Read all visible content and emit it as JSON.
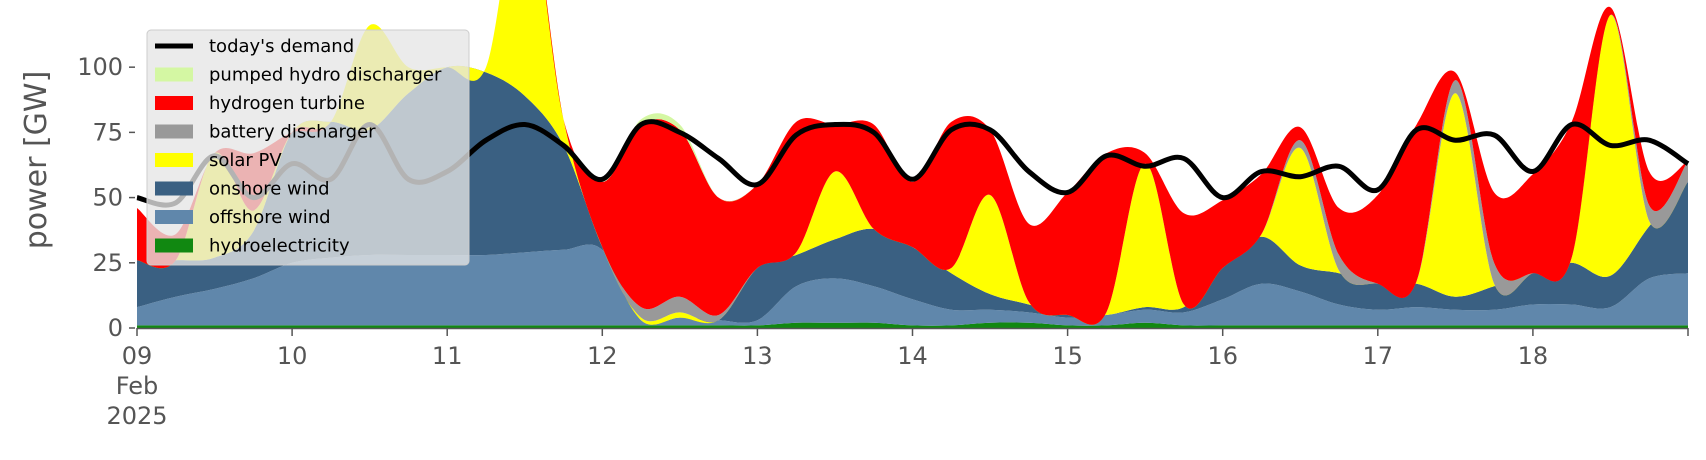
{
  "chart_data": {
    "type": "area",
    "title": "",
    "xlabel": "",
    "ylabel": "power [GW]",
    "ylim": [
      0,
      120
    ],
    "y_ticks": [
      0,
      25,
      50,
      75,
      100
    ],
    "x_start": "2025-02-09",
    "x_end": "2025-02-19",
    "x_ticks": [
      {
        "x": "2025-02-09",
        "lines": [
          "09",
          "Feb",
          "2025"
        ]
      },
      {
        "x": "2025-02-10",
        "lines": [
          "10"
        ]
      },
      {
        "x": "2025-02-11",
        "lines": [
          "11"
        ]
      },
      {
        "x": "2025-02-12",
        "lines": [
          "12"
        ]
      },
      {
        "x": "2025-02-13",
        "lines": [
          "13"
        ]
      },
      {
        "x": "2025-02-14",
        "lines": [
          "14"
        ]
      },
      {
        "x": "2025-02-15",
        "lines": [
          "15"
        ]
      },
      {
        "x": "2025-02-16",
        "lines": [
          "16"
        ]
      },
      {
        "x": "2025-02-17",
        "lines": [
          "17"
        ]
      },
      {
        "x": "2025-02-18",
        "lines": [
          "18"
        ]
      }
    ],
    "grid": false,
    "legend_position": "top-left",
    "stack_order": [
      "hydroelectricity",
      "offshore wind",
      "onshore wind",
      "solar PV",
      "battery discharger",
      "hydrogen turbine",
      "pumped hydro discharger"
    ],
    "colors": {
      "today's demand": "#000000",
      "pumped hydro discharger": "#d4f7a3",
      "hydrogen turbine": "#ff0000",
      "battery discharger": "#999999",
      "solar PV": "#ffff00",
      "onshore wind": "#3a6082",
      "offshore wind": "#6087ab",
      "hydroelectricity": "#118811"
    },
    "legend": [
      "today's demand",
      "pumped hydro discharger",
      "hydrogen turbine",
      "battery discharger",
      "solar PV",
      "onshore wind",
      "offshore wind",
      "hydroelectricity"
    ],
    "x": [
      "2025-02-09 00:00",
      "2025-02-09 06:00",
      "2025-02-09 12:00",
      "2025-02-09 18:00",
      "2025-02-10 00:00",
      "2025-02-10 06:00",
      "2025-02-10 12:00",
      "2025-02-10 18:00",
      "2025-02-11 00:00",
      "2025-02-11 06:00",
      "2025-02-11 12:00",
      "2025-02-11 18:00",
      "2025-02-12 00:00",
      "2025-02-12 06:00",
      "2025-02-12 12:00",
      "2025-02-12 18:00",
      "2025-02-13 00:00",
      "2025-02-13 06:00",
      "2025-02-13 12:00",
      "2025-02-13 18:00",
      "2025-02-14 00:00",
      "2025-02-14 06:00",
      "2025-02-14 12:00",
      "2025-02-14 18:00",
      "2025-02-15 00:00",
      "2025-02-15 06:00",
      "2025-02-15 12:00",
      "2025-02-15 18:00",
      "2025-02-16 00:00",
      "2025-02-16 06:00",
      "2025-02-16 12:00",
      "2025-02-16 18:00",
      "2025-02-17 00:00",
      "2025-02-17 06:00",
      "2025-02-17 12:00",
      "2025-02-17 18:00",
      "2025-02-18 00:00",
      "2025-02-18 06:00",
      "2025-02-18 12:00",
      "2025-02-18 18:00",
      "2025-02-19 00:00"
    ],
    "series": [
      {
        "name": "hydroelectricity",
        "values": [
          1,
          1,
          1,
          1,
          1,
          1,
          1,
          1,
          1,
          1,
          1,
          1,
          1,
          1,
          1,
          1,
          1,
          2,
          2,
          2,
          1,
          1,
          2,
          2,
          1,
          1,
          2,
          1,
          1,
          1,
          1,
          1,
          1,
          1,
          1,
          1,
          1,
          1,
          1,
          1,
          1
        ]
      },
      {
        "name": "offshore wind",
        "values": [
          7,
          11,
          14,
          18,
          24,
          26,
          27,
          27,
          27,
          27,
          28,
          29,
          29,
          2,
          3,
          2,
          2,
          14,
          17,
          14,
          10,
          6,
          5,
          4,
          3,
          4,
          5,
          5,
          10,
          16,
          13,
          8,
          6,
          7,
          6,
          6,
          8,
          8,
          7,
          18,
          20
        ]
      },
      {
        "name": "onshore wind",
        "values": [
          18,
          14,
          12,
          18,
          50,
          52,
          48,
          62,
          72,
          70,
          60,
          40,
          1,
          0,
          0,
          0,
          20,
          12,
          15,
          22,
          20,
          14,
          6,
          3,
          1,
          0,
          1,
          2,
          12,
          18,
          10,
          12,
          10,
          9,
          5,
          9,
          12,
          16,
          12,
          20,
          35
        ]
      },
      {
        "name": "solar PV",
        "values": [
          0,
          0,
          40,
          8,
          0,
          0,
          40,
          10,
          0,
          2,
          82,
          10,
          0,
          1,
          2,
          0,
          0,
          1,
          26,
          0,
          0,
          2,
          38,
          1,
          0,
          1,
          55,
          1,
          0,
          1,
          45,
          1,
          0,
          1,
          78,
          1,
          0,
          2,
          100,
          2,
          0
        ]
      },
      {
        "name": "battery discharger",
        "values": [
          0,
          0,
          0,
          0,
          0,
          0,
          0,
          0,
          0,
          0,
          0,
          0,
          0,
          4,
          6,
          2,
          0,
          0,
          0,
          0,
          0,
          0,
          0,
          0,
          0,
          0,
          0,
          0,
          0,
          0,
          3,
          6,
          0,
          0,
          5,
          8,
          0,
          0,
          0,
          6,
          8
        ]
      },
      {
        "name": "hydrogen turbine",
        "values": [
          20,
          10,
          0,
          22,
          0,
          0,
          0,
          0,
          0,
          0,
          0,
          0,
          25,
          70,
          64,
          45,
          32,
          50,
          18,
          40,
          25,
          56,
          25,
          30,
          47,
          61,
          4,
          35,
          26,
          23,
          5,
          18,
          34,
          60,
          3,
          27,
          38,
          52,
          3,
          13,
          0
        ]
      },
      {
        "name": "pumped hydro discharger",
        "values": [
          0,
          0,
          0,
          0,
          0,
          0,
          0,
          0,
          0,
          0,
          0,
          0,
          0,
          2,
          2,
          0,
          0,
          0,
          0,
          0,
          0,
          0,
          0,
          0,
          0,
          0,
          0,
          0,
          0,
          0,
          0,
          0,
          0,
          0,
          0,
          0,
          0,
          0,
          0,
          0,
          0
        ]
      },
      {
        "name": "today's demand",
        "values": [
          50,
          48,
          66,
          50,
          63,
          57,
          78,
          57,
          60,
          72,
          78,
          70,
          57,
          78,
          75,
          65,
          55,
          74,
          78,
          75,
          57,
          76,
          76,
          60,
          52,
          66,
          62,
          65,
          50,
          60,
          58,
          62,
          53,
          76,
          72,
          74,
          60,
          78,
          70,
          72,
          63
        ]
      }
    ]
  }
}
